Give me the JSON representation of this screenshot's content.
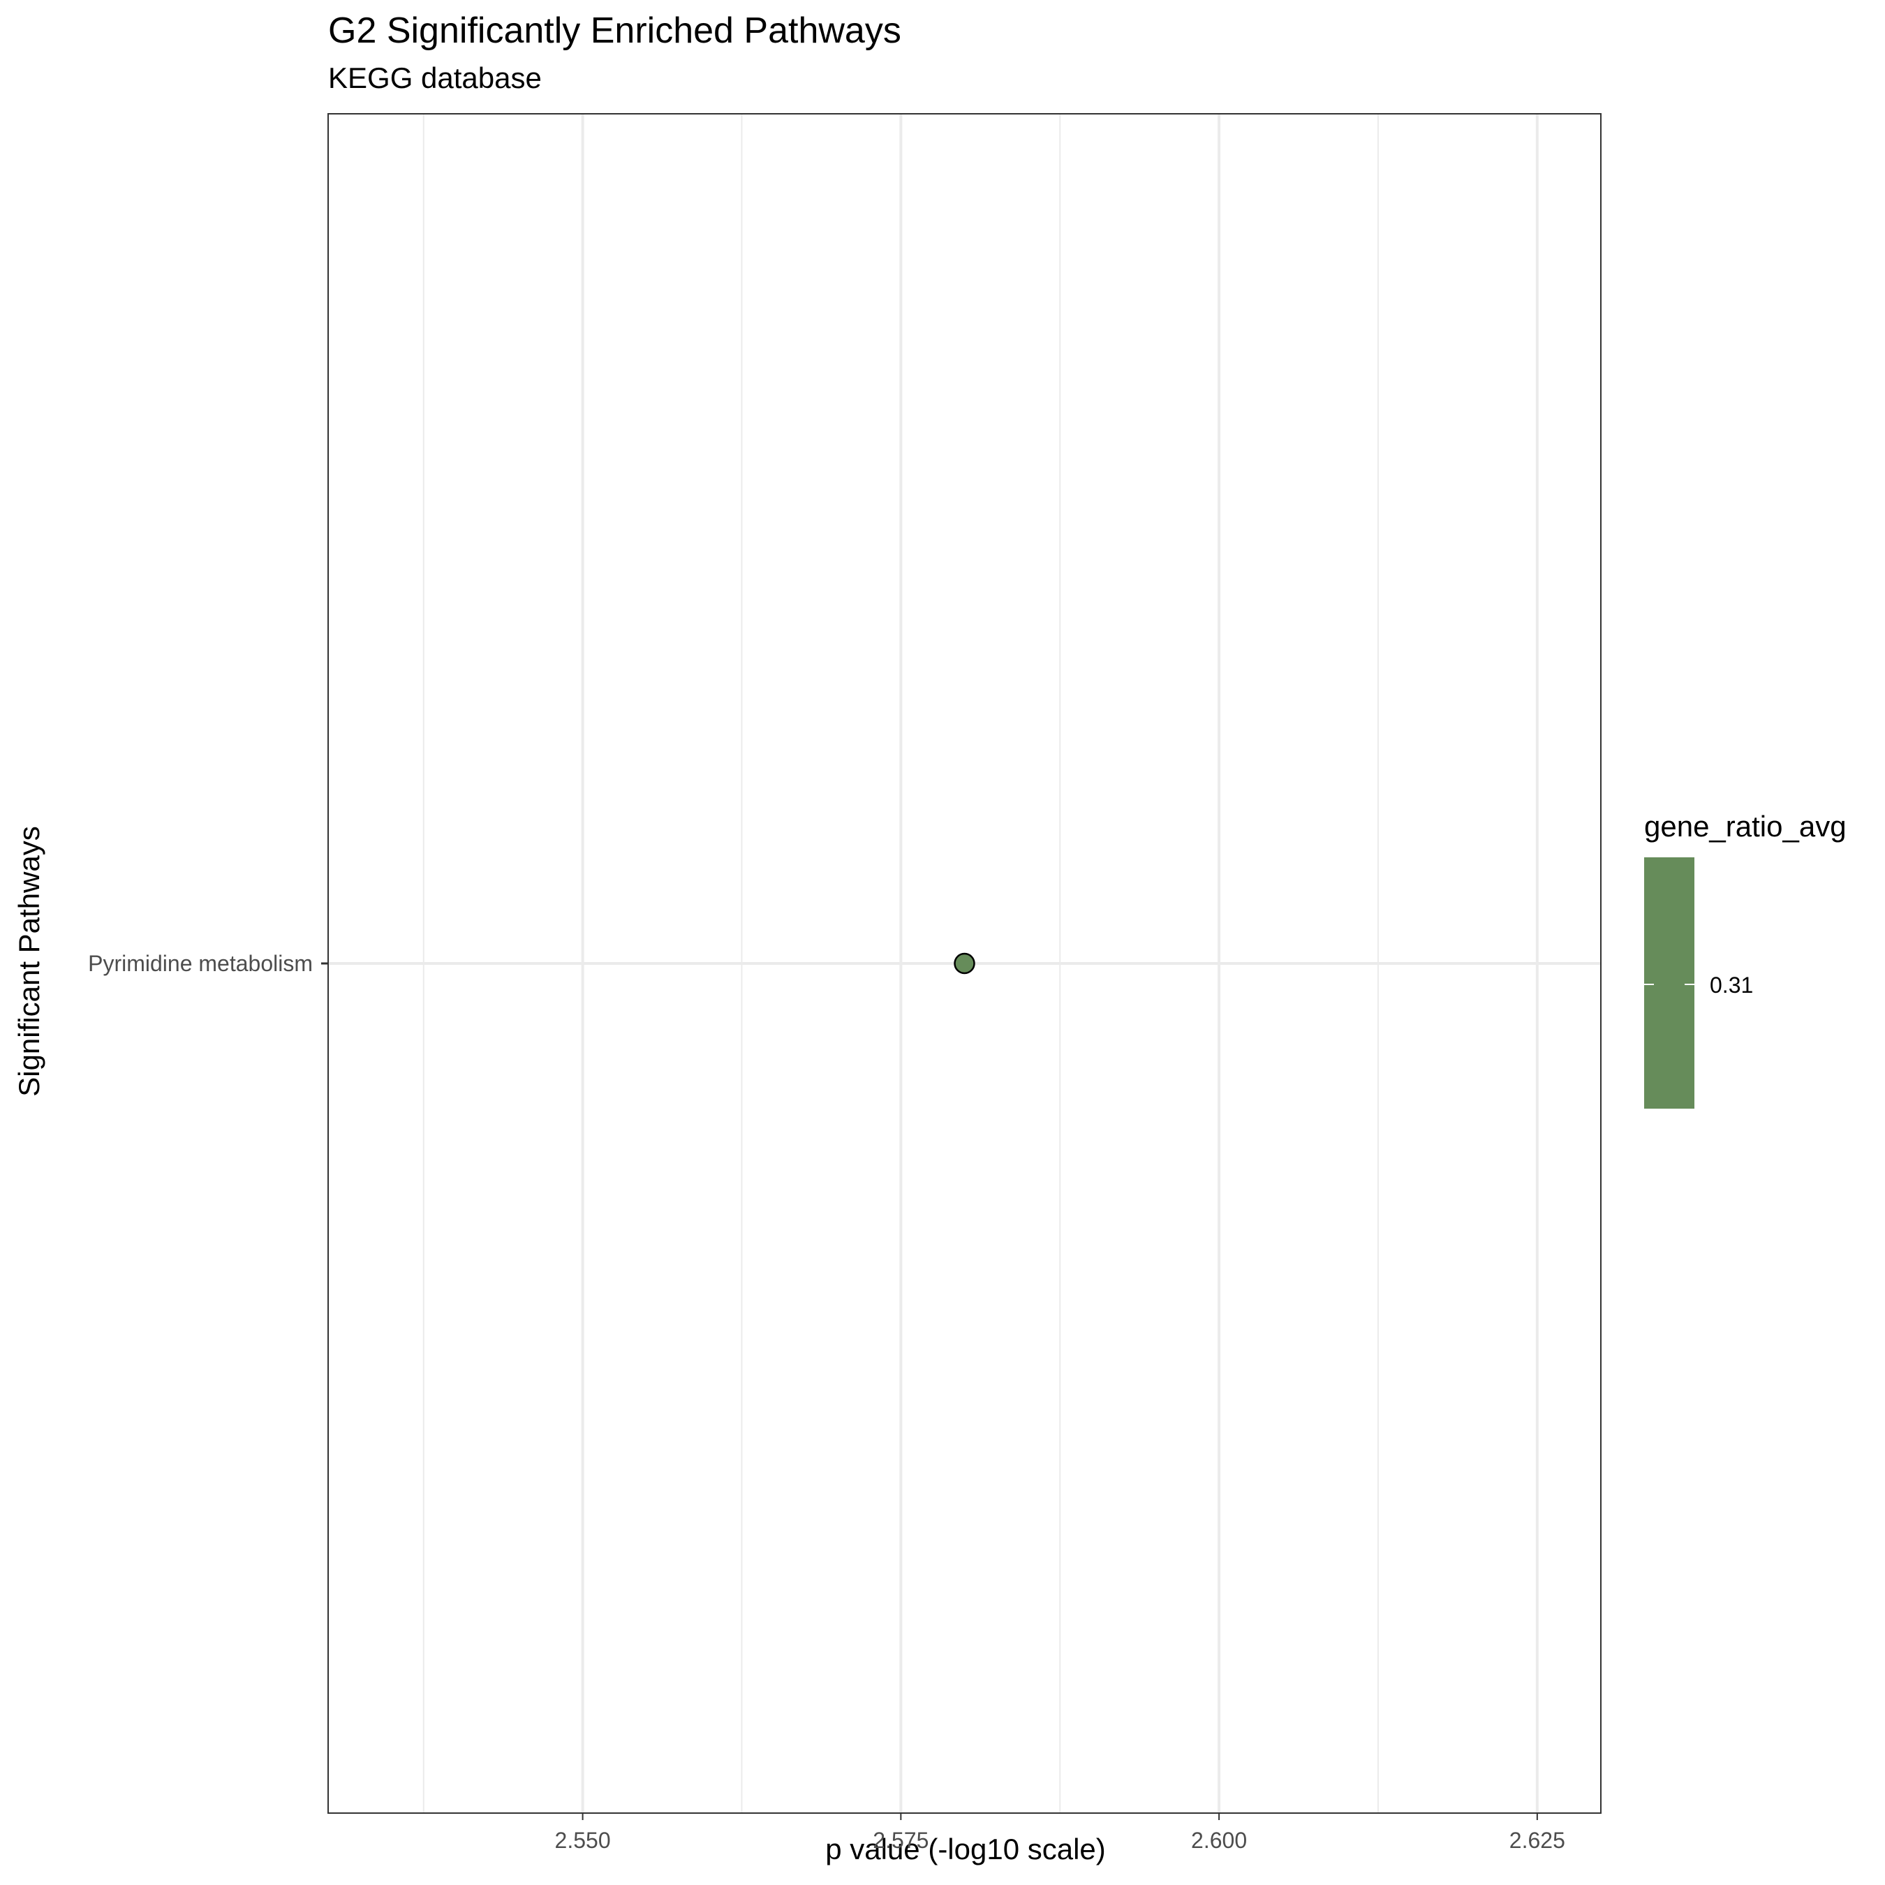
{
  "chart_data": {
    "type": "scatter",
    "title": "G2 Significantly Enriched Pathways",
    "subtitle": "KEGG database",
    "xlabel": "p value (-log10 scale)",
    "ylabel": "Significant Pathways",
    "xlim": [
      2.53,
      2.63
    ],
    "x_ticks": [
      2.55,
      2.575,
      2.6,
      2.625
    ],
    "x_tick_labels": [
      "2.550",
      "2.575",
      "2.600",
      "2.625"
    ],
    "categories": [
      "Pyrimidine metabolism"
    ],
    "points": [
      {
        "category": "Pyrimidine metabolism",
        "x": 2.58,
        "gene_ratio_avg": 0.31
      }
    ],
    "grid": true,
    "legend": {
      "title": "gene_ratio_avg",
      "type": "colorbar",
      "placement": "right",
      "ticks": [
        0.31
      ],
      "tick_labels": [
        "0.31"
      ],
      "color": "#668c5a"
    },
    "point_color": "#668c5a"
  }
}
